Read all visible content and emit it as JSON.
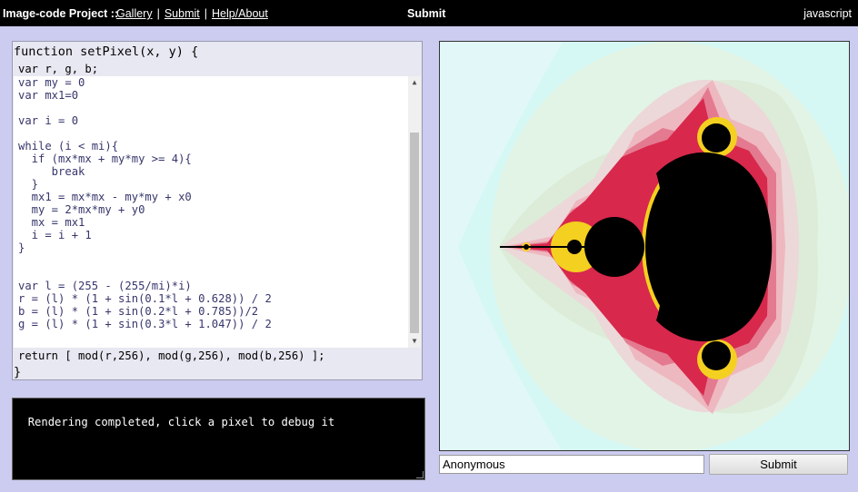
{
  "topbar": {
    "brand": "Image-code Project ::",
    "nav": [
      "Gallery",
      "Submit",
      "Help/About"
    ],
    "separator": "|",
    "center": "Submit",
    "language": "javascript"
  },
  "code": {
    "header_line1": "function setPixel(x, y) {",
    "header_line2": "var r, g, b;",
    "body_lines": [
      "var my = 0",
      "var mx1=0",
      "",
      "var i = 0",
      "",
      "while (i < mi){",
      "  if (mx*mx + my*my >= 4){",
      "     break",
      "  }",
      "  mx1 = mx*mx - my*my + x0",
      "  my = 2*mx*my + y0",
      "  mx = mx1",
      "  i = i + 1",
      "}",
      "",
      "",
      "var l = (255 - (255/mi)*i)",
      "r = (l) * (1 + sin(0.1*l + 0.628)) / 2",
      "b = (l) * (1 + sin(0.2*l + 0.785))/2",
      "g = (l) * (1 + sin(0.3*l + 1.047)) / 2"
    ],
    "footer_line1": "return [ mod(r,256), mod(g,256), mod(b,256) ];",
    "footer_line2": "}",
    "scroll_up": "▲",
    "scroll_down": "▼"
  },
  "console": {
    "text": "Rendering completed, click a pixel to debug it"
  },
  "canvas": {
    "background_color": "#d6f8f4",
    "set_color": "#000000",
    "band_colors": [
      "#d6f8f4",
      "#e2f4e6",
      "#dcecd8",
      "#ecc8c8",
      "#e89aa6",
      "#e04a6a",
      "#d6204a",
      "#f4d020"
    ]
  },
  "form": {
    "name_value": "Anonymous",
    "submit_label": "Submit"
  }
}
